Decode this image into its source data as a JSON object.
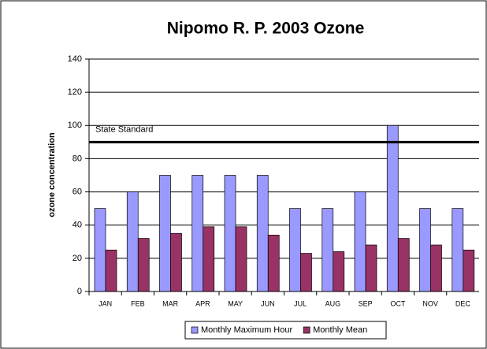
{
  "chart_data": {
    "type": "bar",
    "title": "Nipomo R. P. 2003 Ozone",
    "y_label": "ozone concentration",
    "categories": [
      "JAN",
      "FEB",
      "MAR",
      "APR",
      "MAY",
      "JUN",
      "JUL",
      "AUG",
      "SEP",
      "OCT",
      "NOV",
      "DEC"
    ],
    "series": [
      {
        "name": "Monthly Maximum Hour",
        "color": "#9999ff",
        "values": [
          50,
          60,
          70,
          70,
          70,
          70,
          50,
          50,
          60,
          100,
          50,
          50
        ]
      },
      {
        "name": "Monthly Mean",
        "color": "#993366",
        "values": [
          25,
          32,
          35,
          39,
          39,
          34,
          23,
          24,
          28,
          32,
          28,
          25
        ]
      }
    ],
    "reference_line": {
      "value": 90,
      "label": "State Standard"
    },
    "ylim": [
      0,
      140
    ],
    "yticks": [
      0,
      20,
      40,
      60,
      80,
      100,
      120,
      140
    ],
    "grid": true
  }
}
